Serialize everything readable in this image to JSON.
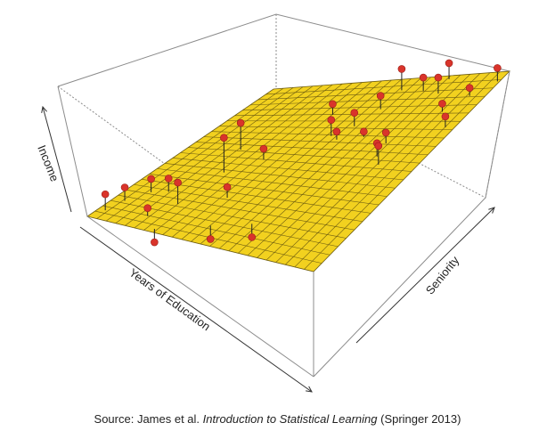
{
  "chart_data": {
    "type": "scatter",
    "axes": {
      "x_label": "Years of Education",
      "y_label": "Seniority",
      "z_label": "Income"
    },
    "plane_color": "#f2d11f",
    "grid_color": "#6b5a10",
    "point_color": "#d9342b",
    "box_color": "#8c8c8c",
    "grid_lines": 24,
    "points": [
      {
        "u": 0.03,
        "v": 0.06,
        "h": 0.06
      },
      {
        "u": 0.05,
        "v": 0.14,
        "h": 0.05
      },
      {
        "u": 0.1,
        "v": 0.22,
        "h": 0.05
      },
      {
        "u": 0.16,
        "v": 0.24,
        "h": 0.05
      },
      {
        "u": 0.25,
        "v": 0.18,
        "h": 0.08
      },
      {
        "u": 0.2,
        "v": 0.08,
        "h": 0.03
      },
      {
        "u": 0.28,
        "v": 0.02,
        "h": -0.05
      },
      {
        "u": 0.27,
        "v": 0.4,
        "h": 0.13
      },
      {
        "u": 0.22,
        "v": 0.55,
        "h": 0.1
      },
      {
        "u": 0.36,
        "v": 0.5,
        "h": 0.04
      },
      {
        "u": 0.4,
        "v": 0.26,
        "h": 0.04
      },
      {
        "u": 0.46,
        "v": 0.1,
        "h": -0.05
      },
      {
        "u": 0.6,
        "v": 0.15,
        "h": -0.05
      },
      {
        "u": 0.52,
        "v": 0.66,
        "h": 0.06
      },
      {
        "u": 0.42,
        "v": 0.79,
        "h": 0.04
      },
      {
        "u": 0.56,
        "v": 0.64,
        "h": 0.03
      },
      {
        "u": 0.66,
        "v": 0.66,
        "h": 0.02
      },
      {
        "u": 0.57,
        "v": 0.72,
        "h": 0.05
      },
      {
        "u": 0.6,
        "v": 0.82,
        "h": 0.05
      },
      {
        "u": 0.6,
        "v": 0.93,
        "h": 0.08
      },
      {
        "u": 0.78,
        "v": 0.63,
        "h": 0.04
      },
      {
        "u": 0.8,
        "v": 0.56,
        "h": 0.05
      },
      {
        "u": 0.84,
        "v": 0.52,
        "h": 0.07
      },
      {
        "u": 0.7,
        "v": 0.92,
        "h": 0.05
      },
      {
        "u": 0.78,
        "v": 0.9,
        "h": 0.06
      },
      {
        "u": 0.76,
        "v": 0.98,
        "h": 0.06
      },
      {
        "u": 0.88,
        "v": 0.8,
        "h": 0.03
      },
      {
        "u": 0.96,
        "v": 0.72,
        "h": 0.04
      },
      {
        "u": 0.93,
        "v": 0.88,
        "h": 0.03
      },
      {
        "u": 0.99,
        "v": 0.95,
        "h": 0.05
      }
    ]
  },
  "caption": {
    "prefix": "Source: James et al. ",
    "book_title": "Introduction to Statistical Learning",
    "suffix": " (Springer 2013)"
  }
}
